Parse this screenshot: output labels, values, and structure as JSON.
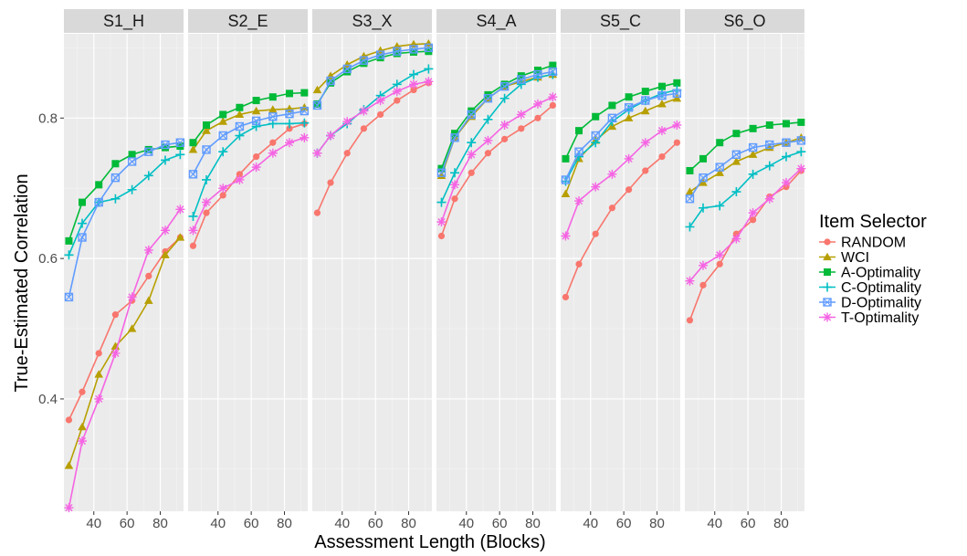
{
  "chart_data": {
    "type": "line",
    "xlabel": "Assessment Length (Blocks)",
    "ylabel": "True-Estimated Correlation",
    "legend_title": "Item Selector",
    "legend_position": "right",
    "grid": true,
    "background": "#ebebeb",
    "xlim": [
      22,
      94
    ],
    "ylim": [
      0.24,
      0.92
    ],
    "x_ticks": [
      40,
      60,
      80
    ],
    "y_ticks": [
      0.4,
      0.6,
      0.8
    ],
    "x": [
      25,
      33,
      43,
      53,
      63,
      73,
      83,
      92
    ],
    "series_meta": [
      {
        "name": "RANDOM",
        "color": "#f8766d",
        "marker": "circle"
      },
      {
        "name": "WCI",
        "color": "#b79f00",
        "marker": "triangle"
      },
      {
        "name": "A-Optimality",
        "color": "#00ba38",
        "marker": "square"
      },
      {
        "name": "C-Optimality",
        "color": "#00bfc4",
        "marker": "plus"
      },
      {
        "name": "D-Optimality",
        "color": "#619cff",
        "marker": "square-x"
      },
      {
        "name": "T-Optimality",
        "color": "#f564e3",
        "marker": "star"
      }
    ],
    "panels": [
      {
        "title": "S1_H",
        "series": [
          {
            "name": "RANDOM",
            "values": [
              0.37,
              0.41,
              0.465,
              0.52,
              0.54,
              0.575,
              0.61,
              0.63
            ]
          },
          {
            "name": "WCI",
            "values": [
              0.305,
              0.36,
              0.435,
              0.475,
              0.5,
              0.54,
              0.605,
              0.63
            ]
          },
          {
            "name": "A-Optimality",
            "values": [
              0.625,
              0.68,
              0.705,
              0.735,
              0.748,
              0.755,
              0.758,
              0.76
            ]
          },
          {
            "name": "C-Optimality",
            "values": [
              0.605,
              0.65,
              0.68,
              0.685,
              0.698,
              0.718,
              0.74,
              0.748
            ]
          },
          {
            "name": "D-Optimality",
            "values": [
              0.545,
              0.63,
              0.68,
              0.715,
              0.738,
              0.752,
              0.762,
              0.765
            ]
          },
          {
            "name": "T-Optimality",
            "values": [
              0.245,
              0.34,
              0.4,
              0.465,
              0.545,
              0.612,
              0.64,
              0.67
            ]
          }
        ]
      },
      {
        "title": "S2_E",
        "series": [
          {
            "name": "RANDOM",
            "values": [
              0.618,
              0.665,
              0.69,
              0.72,
              0.745,
              0.765,
              0.785,
              0.792
            ]
          },
          {
            "name": "WCI",
            "values": [
              0.755,
              0.782,
              0.795,
              0.805,
              0.81,
              0.812,
              0.813,
              0.815
            ]
          },
          {
            "name": "A-Optimality",
            "values": [
              0.765,
              0.79,
              0.805,
              0.815,
              0.825,
              0.83,
              0.835,
              0.836
            ]
          },
          {
            "name": "C-Optimality",
            "values": [
              0.66,
              0.712,
              0.752,
              0.775,
              0.788,
              0.792,
              0.792,
              0.793
            ]
          },
          {
            "name": "D-Optimality",
            "values": [
              0.72,
              0.755,
              0.775,
              0.788,
              0.796,
              0.802,
              0.806,
              0.81
            ]
          },
          {
            "name": "T-Optimality",
            "values": [
              0.64,
              0.68,
              0.7,
              0.712,
              0.73,
              0.75,
              0.765,
              0.772
            ]
          }
        ]
      },
      {
        "title": "S3_X",
        "series": [
          {
            "name": "RANDOM",
            "values": [
              0.665,
              0.708,
              0.75,
              0.785,
              0.805,
              0.825,
              0.84,
              0.85
            ]
          },
          {
            "name": "WCI",
            "values": [
              0.84,
              0.86,
              0.876,
              0.888,
              0.896,
              0.902,
              0.905,
              0.906
            ]
          },
          {
            "name": "A-Optimality",
            "values": [
              0.82,
              0.85,
              0.866,
              0.878,
              0.886,
              0.892,
              0.894,
              0.895
            ]
          },
          {
            "name": "C-Optimality",
            "values": [
              0.75,
              0.775,
              0.792,
              0.812,
              0.832,
              0.848,
              0.862,
              0.87
            ]
          },
          {
            "name": "D-Optimality",
            "values": [
              0.818,
              0.853,
              0.87,
              0.882,
              0.89,
              0.895,
              0.898,
              0.9
            ]
          },
          {
            "name": "T-Optimality",
            "values": [
              0.75,
              0.775,
              0.795,
              0.81,
              0.825,
              0.838,
              0.848,
              0.852
            ]
          }
        ]
      },
      {
        "title": "S4_A",
        "series": [
          {
            "name": "RANDOM",
            "values": [
              0.632,
              0.685,
              0.722,
              0.75,
              0.77,
              0.785,
              0.8,
              0.818
            ]
          },
          {
            "name": "WCI",
            "values": [
              0.718,
              0.772,
              0.802,
              0.828,
              0.845,
              0.852,
              0.858,
              0.862
            ]
          },
          {
            "name": "A-Optimality",
            "values": [
              0.728,
              0.778,
              0.81,
              0.833,
              0.848,
              0.86,
              0.868,
              0.875
            ]
          },
          {
            "name": "C-Optimality",
            "values": [
              0.68,
              0.722,
              0.765,
              0.798,
              0.828,
              0.848,
              0.858,
              0.862
            ]
          },
          {
            "name": "D-Optimality",
            "values": [
              0.722,
              0.772,
              0.805,
              0.828,
              0.845,
              0.855,
              0.862,
              0.866
            ]
          },
          {
            "name": "T-Optimality",
            "values": [
              0.652,
              0.705,
              0.748,
              0.768,
              0.79,
              0.805,
              0.82,
              0.83
            ]
          }
        ]
      },
      {
        "title": "S5_C",
        "series": [
          {
            "name": "RANDOM",
            "values": [
              0.545,
              0.592,
              0.635,
              0.672,
              0.698,
              0.725,
              0.745,
              0.765
            ]
          },
          {
            "name": "WCI",
            "values": [
              0.692,
              0.742,
              0.768,
              0.788,
              0.8,
              0.81,
              0.82,
              0.828
            ]
          },
          {
            "name": "A-Optimality",
            "values": [
              0.742,
              0.782,
              0.802,
              0.818,
              0.83,
              0.838,
              0.845,
              0.85
            ]
          },
          {
            "name": "C-Optimality",
            "values": [
              0.71,
              0.745,
              0.765,
              0.795,
              0.812,
              0.825,
              0.835,
              0.84
            ]
          },
          {
            "name": "D-Optimality",
            "values": [
              0.712,
              0.752,
              0.775,
              0.8,
              0.815,
              0.825,
              0.832,
              0.835
            ]
          },
          {
            "name": "T-Optimality",
            "values": [
              0.632,
              0.682,
              0.702,
              0.72,
              0.742,
              0.765,
              0.782,
              0.79
            ]
          }
        ]
      },
      {
        "title": "S6_O",
        "series": [
          {
            "name": "RANDOM",
            "values": [
              0.512,
              0.562,
              0.592,
              0.635,
              0.655,
              0.688,
              0.702,
              0.725
            ]
          },
          {
            "name": "WCI",
            "values": [
              0.695,
              0.708,
              0.722,
              0.738,
              0.748,
              0.758,
              0.765,
              0.772
            ]
          },
          {
            "name": "A-Optimality",
            "values": [
              0.725,
              0.742,
              0.765,
              0.778,
              0.785,
              0.79,
              0.792,
              0.794
            ]
          },
          {
            "name": "C-Optimality",
            "values": [
              0.645,
              0.672,
              0.675,
              0.695,
              0.72,
              0.732,
              0.745,
              0.752
            ]
          },
          {
            "name": "D-Optimality",
            "values": [
              0.685,
              0.715,
              0.73,
              0.748,
              0.758,
              0.762,
              0.765,
              0.768
            ]
          },
          {
            "name": "T-Optimality",
            "values": [
              0.568,
              0.59,
              0.605,
              0.628,
              0.665,
              0.685,
              0.708,
              0.728
            ]
          }
        ]
      }
    ]
  }
}
